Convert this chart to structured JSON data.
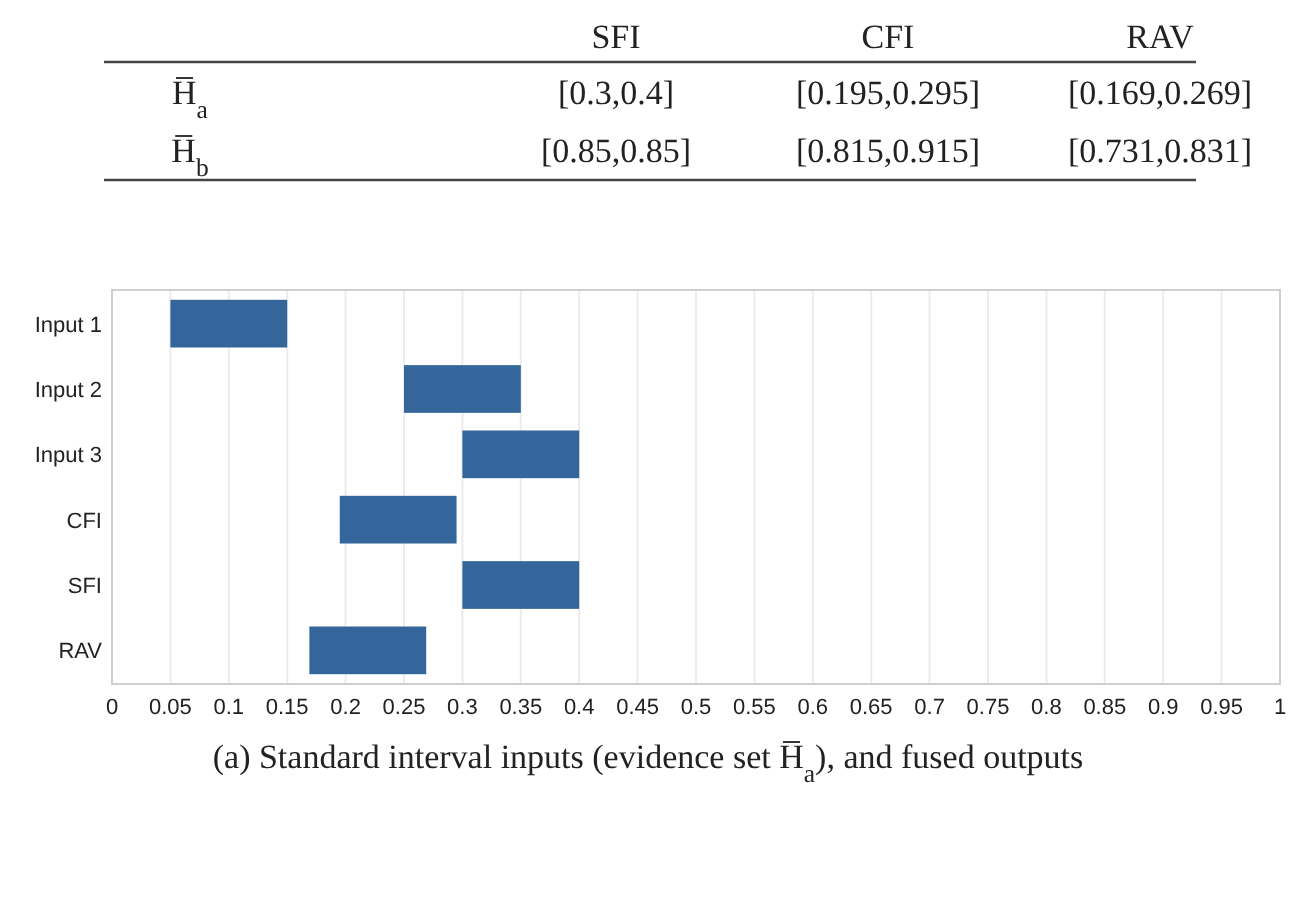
{
  "chart_data": {
    "type": "bar",
    "orientation": "horizontal",
    "categories": [
      "Input 1",
      "Input 2",
      "Input 3",
      "CFI",
      "SFI",
      "RAV"
    ],
    "base": [
      0.05,
      0.25,
      0.3,
      0.195,
      0.3,
      0.169
    ],
    "values": [
      0.1,
      0.1,
      0.1,
      0.1,
      0.1,
      0.1
    ],
    "color": "#34659b",
    "xlim": [
      0,
      1
    ],
    "xticks": [
      0,
      0.05,
      0.1,
      0.15,
      0.2,
      0.25,
      0.3,
      0.35,
      0.4,
      0.45,
      0.5,
      0.55,
      0.6,
      0.65,
      0.7,
      0.75,
      0.8,
      0.85,
      0.9,
      0.95,
      1
    ],
    "grid": "x",
    "annotations": [
      "SFI",
      "CFI",
      "RAV",
      "H̅$_{a}$",
      "[0.3,0.4]",
      "[0.195,0.295]",
      "[0.169,0.269]",
      "H̅$_{b}$",
      "[0.85,0.85]",
      "[0.815,0.915]",
      "[0.731,0.831]",
      "(a) Standard interval inputs (evidence set H̅$_{a}$), and fused outputs"
    ]
  }
}
